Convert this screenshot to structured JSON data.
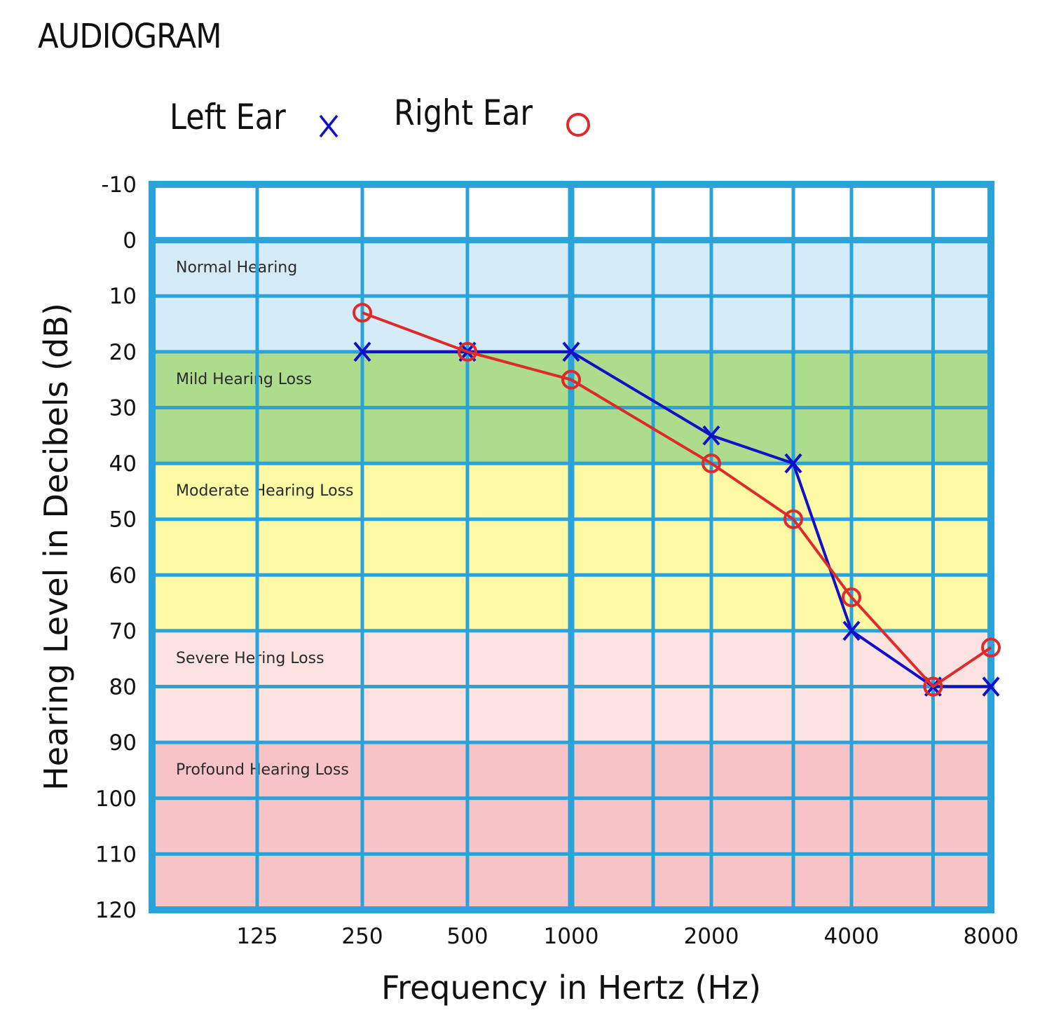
{
  "chart_data": {
    "type": "line",
    "title": "AUDIOGRAM",
    "xlabel": "Frequency in Hertz (Hz)",
    "ylabel": "Hearing Level in Decibels (dB)",
    "x_scale": "log2 (octave)",
    "x_tick_labels": [
      "125",
      "250",
      "500",
      "1000",
      "2000",
      "4000",
      "8000"
    ],
    "x_ticks": [
      125,
      250,
      500,
      1000,
      2000,
      4000,
      8000
    ],
    "x_gridlines": [
      125,
      250,
      500,
      1000,
      1500,
      2000,
      3000,
      4000,
      6000,
      8000
    ],
    "y_tick_labels": [
      "-10",
      "0",
      "10",
      "20",
      "30",
      "40",
      "50",
      "60",
      "70",
      "80",
      "90",
      "100",
      "110",
      "120"
    ],
    "y_ticks": [
      -10,
      0,
      10,
      20,
      30,
      40,
      50,
      60,
      70,
      80,
      90,
      100,
      110,
      120
    ],
    "ylim": [
      -10,
      120
    ],
    "y_inverted": true,
    "grid": true,
    "legend_position": "top",
    "zones": [
      {
        "label": "Normal Hearing",
        "from": 0,
        "to": 20,
        "color": "#d6ebf8"
      },
      {
        "label": "Mild Hearing Loss",
        "from": 20,
        "to": 40,
        "color": "#acdc8c"
      },
      {
        "label": "Moderate Hearing Loss",
        "from": 40,
        "to": 70,
        "color": "#fcf8a3"
      },
      {
        "label": "Severe Hering Loss",
        "from": 70,
        "to": 90,
        "color": "#fde2e2"
      },
      {
        "label": "Profound Hearing Loss",
        "from": 90,
        "to": 120,
        "color": "#f8c3c6"
      }
    ],
    "series": [
      {
        "name": "Left Ear",
        "marker": "x",
        "color": "#1010c8",
        "x": [
          250,
          500,
          1000,
          2000,
          3000,
          4000,
          6000,
          8000
        ],
        "y": [
          20,
          20,
          20,
          35,
          40,
          70,
          80,
          80
        ]
      },
      {
        "name": "Right Ear",
        "marker": "o",
        "color": "#dd2a2a",
        "x": [
          250,
          500,
          1000,
          2000,
          3000,
          4000,
          6000,
          8000
        ],
        "y": [
          13,
          20,
          25,
          40,
          50,
          64,
          80,
          73
        ]
      }
    ],
    "grid_color": "#29a3d9"
  }
}
